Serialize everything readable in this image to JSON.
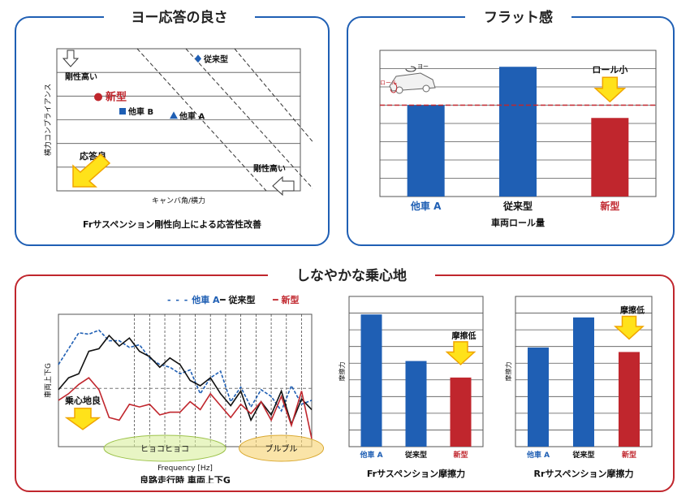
{
  "sections": {
    "yaw": {
      "title": "ヨー応答の良さ"
    },
    "flat": {
      "title": "フラット感"
    },
    "ride": {
      "title": "しなやかな乗心地"
    }
  },
  "colors": {
    "blue": "#1f5fb4",
    "red": "#c0262d",
    "black": "#111111",
    "arrow_fill": "#ffe21a",
    "arrow_stroke": "#f0a500"
  },
  "chart_data": [
    {
      "type": "scatter",
      "id": "yaw-response",
      "title": "",
      "xlabel": "キャンバ角/横力",
      "ylabel": "横力コンプライアンス",
      "caption": "Frサスペンション剛性向上による応答性改善",
      "grid": true,
      "points": [
        {
          "name": "新型",
          "x": 0.17,
          "y": 0.66,
          "marker": "circle",
          "color": "#c0262d"
        },
        {
          "name": "他車 B",
          "x": 0.27,
          "y": 0.56,
          "marker": "square",
          "color": "#1f5fb4"
        },
        {
          "name": "他車 A",
          "x": 0.48,
          "y": 0.53,
          "marker": "triangle",
          "color": "#1f5fb4"
        },
        {
          "name": "従来型",
          "x": 0.58,
          "y": 0.93,
          "marker": "diamond",
          "color": "#1f5fb4"
        }
      ],
      "annotations": {
        "top": "剛性高い",
        "bottom": "剛性高い",
        "good": "応答良"
      }
    },
    {
      "type": "bar",
      "id": "body-roll",
      "title": "",
      "caption": "車両ロール量",
      "categories": [
        "他車 A",
        "従来型",
        "新型"
      ],
      "category_colors": [
        "#1f5fb4",
        "#111111",
        "#c0262d"
      ],
      "values": [
        5.0,
        7.1,
        4.3
      ],
      "bar_colors": [
        "#1f5fb4",
        "#1f5fb4",
        "#c0262d"
      ],
      "ylim": [
        0,
        8
      ],
      "reference_line": 5.0,
      "annotation": "ロール小",
      "icon_labels": {
        "yaw": "ヨー",
        "roll": "ロール"
      }
    },
    {
      "type": "line",
      "id": "ride-g",
      "title": "",
      "xlabel": "Frequency [Hz]",
      "ylabel": "車両上下G",
      "caption": "良路走行時 車両上下G",
      "annotation": "乗心地良",
      "bands": [
        "ヒョコヒョコ",
        "ブルブル"
      ],
      "x": [
        0,
        2,
        4,
        6,
        8,
        10,
        12,
        14,
        16,
        18,
        20,
        22,
        24,
        26,
        28,
        30,
        32,
        34,
        36,
        38,
        40,
        42,
        44,
        46,
        48,
        50
      ],
      "series": [
        {
          "name": "他車 A",
          "color": "#1f5fb4",
          "dash": "4,2",
          "values": [
            0.62,
            0.74,
            0.86,
            0.85,
            0.88,
            0.8,
            0.8,
            0.75,
            0.77,
            0.67,
            0.62,
            0.6,
            0.55,
            0.58,
            0.4,
            0.52,
            0.57,
            0.34,
            0.45,
            0.3,
            0.43,
            0.38,
            0.27,
            0.46,
            0.32,
            0.35
          ]
        },
        {
          "name": "従来型",
          "color": "#111111",
          "dash": "",
          "values": [
            0.43,
            0.52,
            0.55,
            0.72,
            0.74,
            0.84,
            0.76,
            0.82,
            0.72,
            0.68,
            0.6,
            0.67,
            0.62,
            0.5,
            0.46,
            0.52,
            0.4,
            0.31,
            0.42,
            0.2,
            0.34,
            0.24,
            0.42,
            0.17,
            0.36,
            0.28
          ]
        },
        {
          "name": "新型",
          "color": "#c0262d",
          "dash": "",
          "values": [
            0.35,
            0.4,
            0.47,
            0.52,
            0.43,
            0.22,
            0.2,
            0.32,
            0.3,
            0.32,
            0.24,
            0.26,
            0.26,
            0.34,
            0.28,
            0.4,
            0.31,
            0.22,
            0.32,
            0.25,
            0.34,
            0.2,
            0.38,
            0.16,
            0.42,
            0.06
          ]
        }
      ]
    },
    {
      "type": "bar",
      "id": "fr-friction",
      "title": "",
      "ylabel": "摩擦力",
      "caption": "Frサスペンション摩擦力",
      "categories": [
        "他車 A",
        "従来型",
        "新型"
      ],
      "category_colors": [
        "#1f5fb4",
        "#111111",
        "#c0262d"
      ],
      "values": [
        8.8,
        5.7,
        4.6
      ],
      "bar_colors": [
        "#1f5fb4",
        "#1f5fb4",
        "#c0262d"
      ],
      "ylim": [
        0,
        10
      ],
      "annotation": "摩擦低"
    },
    {
      "type": "bar",
      "id": "rr-friction",
      "title": "",
      "ylabel": "摩擦力",
      "caption": "Rrサスペンション摩擦力",
      "categories": [
        "他車 A",
        "従来型",
        "新型"
      ],
      "category_colors": [
        "#1f5fb4",
        "#111111",
        "#c0262d"
      ],
      "values": [
        6.6,
        8.6,
        6.3
      ],
      "bar_colors": [
        "#1f5fb4",
        "#1f5fb4",
        "#c0262d"
      ],
      "ylim": [
        0,
        10
      ],
      "annotation": "摩擦低"
    }
  ]
}
